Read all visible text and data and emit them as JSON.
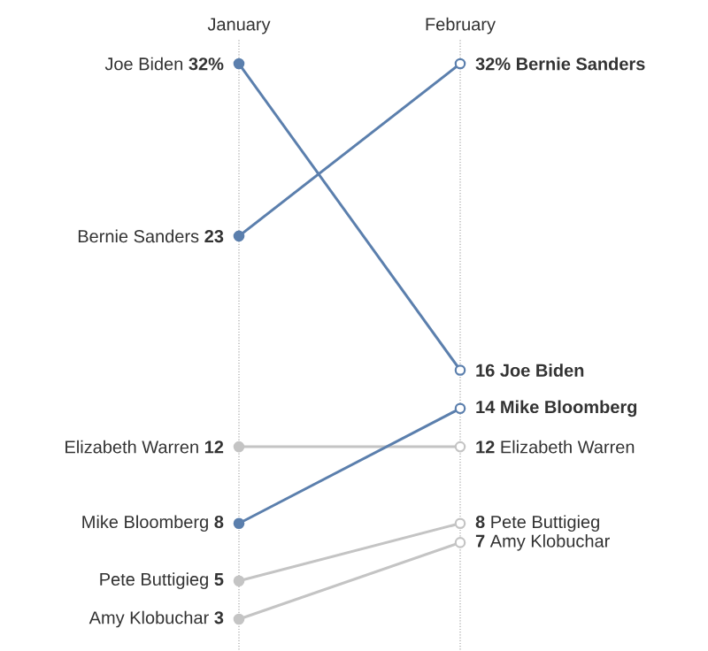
{
  "chart_data": {
    "type": "line",
    "categories": [
      "January",
      "February"
    ],
    "grid": "x",
    "marker": "circle",
    "line_style": "solid",
    "series": [
      {
        "name": "Joe Biden",
        "color": "#5b7fad",
        "values": [
          32,
          16
        ],
        "value_labels": [
          "32%",
          "16"
        ]
      },
      {
        "name": "Bernie Sanders",
        "color": "#5b7fad",
        "values": [
          23,
          32
        ],
        "value_labels": [
          "23",
          "32%"
        ]
      },
      {
        "name": "Elizabeth Warren",
        "color": "#c4c4c4",
        "values": [
          12,
          12
        ],
        "value_labels": [
          "12",
          "12"
        ]
      },
      {
        "name": "Mike Bloomberg",
        "color": "#5b7fad",
        "values": [
          8,
          14
        ],
        "value_labels": [
          "8",
          "14"
        ]
      },
      {
        "name": "Pete Buttigieg",
        "color": "#c4c4c4",
        "values": [
          5,
          8
        ],
        "value_labels": [
          "5",
          "8"
        ]
      },
      {
        "name": "Amy Klobuchar",
        "color": "#c4c4c4",
        "values": [
          3,
          7
        ],
        "value_labels": [
          "3",
          "7"
        ]
      }
    ]
  }
}
